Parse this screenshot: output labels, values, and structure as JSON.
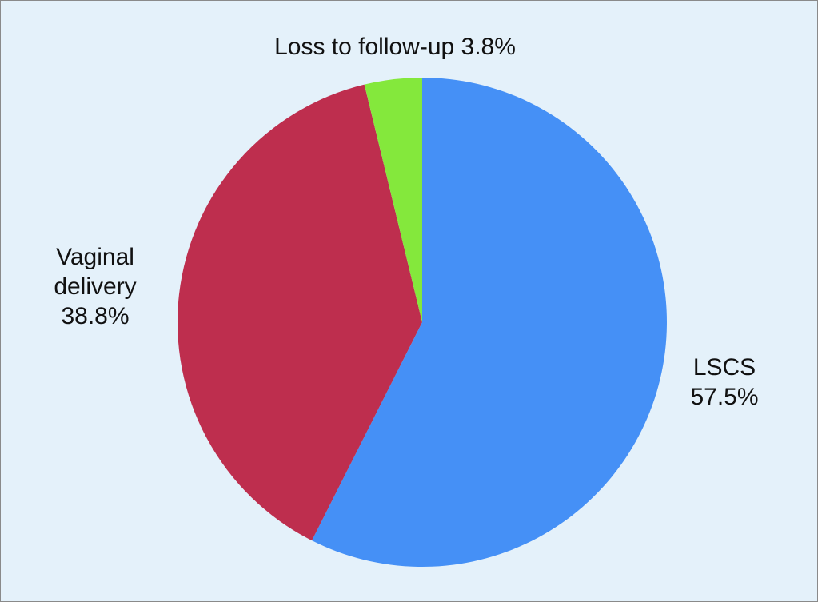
{
  "chart_data": {
    "type": "pie",
    "title": "",
    "slices": [
      {
        "label": "LSCS",
        "value": 57.5,
        "color": "#4590f6",
        "label_lines": [
          "LSCS",
          "57.5%"
        ]
      },
      {
        "label": "Vaginal delivery",
        "value": 38.8,
        "color": "#be2e4e",
        "label_lines": [
          "Vaginal",
          "delivery",
          "38.8%"
        ]
      },
      {
        "label": "Loss to follow-up",
        "value": 3.8,
        "color": "#84e83c",
        "label_lines": [
          "Loss to follow-up 3.8%"
        ]
      }
    ],
    "start_angle_deg": 0,
    "direction": "clockwise",
    "background_color": "#e4f1fa"
  }
}
